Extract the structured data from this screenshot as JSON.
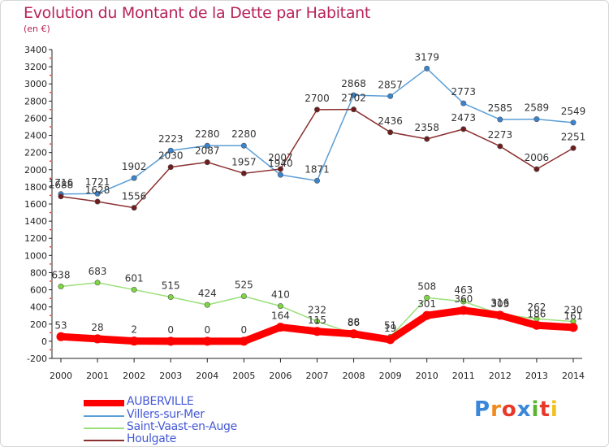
{
  "title": "Evolution du Montant de la Dette par Habitant",
  "subtitle": "(en €)",
  "logo": {
    "text": "Proxiti",
    "colors": [
      "#3a86d8",
      "#f08a1c",
      "#e8382a",
      "#3a86d8",
      "#5bb531",
      "#e8382a",
      "#f2c01e"
    ]
  },
  "chart_data": {
    "type": "line",
    "title": "Evolution du Montant de la Dette par Habitant",
    "ylabel": "(en €)",
    "xlabel": "",
    "x": [
      "2000",
      "2001",
      "2002",
      "2003",
      "2004",
      "2005",
      "2006",
      "2007",
      "2008",
      "2009",
      "2010",
      "2011",
      "2012",
      "2013",
      "2014"
    ],
    "ylim": [
      -200,
      3400
    ],
    "yticks": [
      "-200",
      "0",
      "200",
      "400",
      "600",
      "800",
      "1000",
      "1200",
      "1400",
      "1600",
      "1800",
      "2000",
      "2200",
      "2400",
      "2600",
      "2800",
      "3000",
      "3200",
      "3400"
    ],
    "grid": false,
    "legend_position": "bottom-left",
    "series": [
      {
        "name": "AUBERVILLE",
        "color": "#ff0000",
        "values": [
          53,
          28,
          2,
          0,
          0,
          0,
          164,
          115,
          86,
          19,
          301,
          360,
          303,
          186,
          161
        ],
        "labels": [
          "53",
          "28",
          "2",
          "0",
          "0",
          "0",
          "164",
          "115",
          "86",
          "19",
          "301",
          "360",
          "303",
          "186",
          "161"
        ]
      },
      {
        "name": "Villers-sur-Mer",
        "color": "#5b9fd6",
        "values": [
          1716,
          1721,
          1902,
          2223,
          2280,
          2280,
          1940,
          1871,
          2868,
          2857,
          3179,
          2773,
          2585,
          2589,
          2549
        ],
        "labels": [
          "1716",
          "1721",
          "1902",
          "2223",
          "2280",
          "2280",
          "1940",
          "1871",
          "2868",
          "2857",
          "3179",
          "2773",
          "2585",
          "2589",
          "2549"
        ]
      },
      {
        "name": "Saint-Vaast-en-Auge",
        "color": "#9be07a",
        "values": [
          638,
          683,
          601,
          515,
          424,
          525,
          410,
          232,
          88,
          51,
          508,
          463,
          316,
          262,
          230
        ],
        "labels": [
          "638",
          "683",
          "601",
          "515",
          "424",
          "525",
          "410",
          "232",
          "88",
          "51",
          "508",
          "463",
          "316",
          "262",
          "230"
        ]
      },
      {
        "name": "Houlgate",
        "color": "#8b2f2f",
        "values": [
          1688,
          1628,
          1556,
          2030,
          2087,
          1957,
          2007,
          2700,
          2702,
          2436,
          2358,
          2473,
          2273,
          2006,
          2251
        ],
        "labels": [
          "1688",
          "1628",
          "1556",
          "2030",
          "2087",
          "1957",
          "2007",
          "2700",
          "2702",
          "2436",
          "2358",
          "2473",
          "2273",
          "2006",
          "2251"
        ]
      }
    ]
  }
}
